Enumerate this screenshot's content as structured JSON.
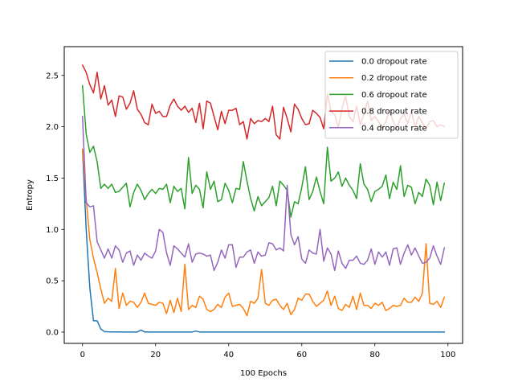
{
  "chart_data": {
    "type": "line",
    "title": "",
    "xlabel": "100 Epochs",
    "ylabel": "Entropy",
    "xlim": [
      -5,
      104
    ],
    "ylim": [
      -0.11,
      2.78
    ],
    "xticks": [
      0,
      20,
      40,
      60,
      80,
      100
    ],
    "yticks": [
      0.0,
      0.5,
      1.0,
      1.5,
      2.0,
      2.5
    ],
    "xtick_labels": [
      "0",
      "20",
      "40",
      "60",
      "80",
      "100"
    ],
    "ytick_labels": [
      "0.0",
      "0.5",
      "1.0",
      "1.5",
      "2.0",
      "2.5"
    ],
    "grid": false,
    "legend_position": "top-right",
    "series": [
      {
        "name": "0.0 dropout rate",
        "color": "#1f77b4",
        "values": [
          1.78,
          1.0,
          0.43,
          0.11,
          0.11,
          0.03,
          0.005,
          0.003,
          0.002,
          0.002,
          0.002,
          0.001,
          0.001,
          0.001,
          0.001,
          0.001,
          0.02,
          0.001,
          0.001,
          0.001,
          0.001,
          0.001,
          0.001,
          0.001,
          0.001,
          0.001,
          0.001,
          0.001,
          0.001,
          0.001,
          0.001,
          0.01,
          0.001,
          0.001,
          0.001,
          0.001,
          0.001,
          0.001,
          0.001,
          0.001,
          0.001,
          0.001,
          0.001,
          0.001,
          0.001,
          0.001,
          0.001,
          0.001,
          0.001,
          0.001,
          0.001,
          0.001,
          0.001,
          0.001,
          0.001,
          0.001,
          0.001,
          0.001,
          0.001,
          0.001,
          0.001,
          0.001,
          0.001,
          0.001,
          0.001,
          0.001,
          0.001,
          0.001,
          0.001,
          0.001,
          0.001,
          0.001,
          0.001,
          0.001,
          0.001,
          0.001,
          0.001,
          0.001,
          0.001,
          0.001,
          0.001,
          0.001,
          0.001,
          0.001,
          0.001,
          0.001,
          0.001,
          0.001,
          0.001,
          0.001,
          0.001,
          0.001,
          0.001,
          0.001,
          0.001,
          0.001,
          0.001,
          0.001,
          0.001,
          0.001
        ]
      },
      {
        "name": "0.2 dropout rate",
        "color": "#ff7f0e",
        "values": [
          1.78,
          1.3,
          0.9,
          0.72,
          0.58,
          0.42,
          0.28,
          0.33,
          0.3,
          0.62,
          0.23,
          0.38,
          0.26,
          0.3,
          0.29,
          0.24,
          0.29,
          0.38,
          0.28,
          0.27,
          0.26,
          0.29,
          0.28,
          0.18,
          0.31,
          0.19,
          0.33,
          0.2,
          0.66,
          0.22,
          0.26,
          0.24,
          0.35,
          0.32,
          0.22,
          0.2,
          0.22,
          0.27,
          0.24,
          0.34,
          0.38,
          0.25,
          0.26,
          0.27,
          0.23,
          0.16,
          0.3,
          0.28,
          0.33,
          0.61,
          0.28,
          0.26,
          0.31,
          0.32,
          0.26,
          0.22,
          0.28,
          0.17,
          0.22,
          0.33,
          0.31,
          0.37,
          0.37,
          0.3,
          0.25,
          0.28,
          0.31,
          0.4,
          0.26,
          0.35,
          0.23,
          0.21,
          0.27,
          0.24,
          0.35,
          0.22,
          0.38,
          0.26,
          0.26,
          0.23,
          0.28,
          0.26,
          0.29,
          0.21,
          0.23,
          0.26,
          0.25,
          0.26,
          0.33,
          0.29,
          0.29,
          0.34,
          0.3,
          0.38,
          0.86,
          0.28,
          0.27,
          0.3,
          0.24,
          0.34
        ]
      },
      {
        "name": "0.6 dropout rate",
        "color": "#2ca02c",
        "values": [
          2.4,
          1.93,
          1.75,
          1.81,
          1.66,
          1.4,
          1.44,
          1.4,
          1.44,
          1.36,
          1.37,
          1.41,
          1.45,
          1.22,
          1.36,
          1.44,
          1.38,
          1.29,
          1.35,
          1.39,
          1.35,
          1.4,
          1.39,
          1.44,
          1.26,
          1.42,
          1.37,
          1.4,
          1.2,
          1.7,
          1.35,
          1.43,
          1.39,
          1.21,
          1.56,
          1.39,
          1.47,
          1.27,
          1.29,
          1.45,
          1.38,
          1.26,
          1.4,
          1.39,
          1.66,
          1.47,
          1.3,
          1.18,
          1.32,
          1.23,
          1.27,
          1.31,
          1.42,
          1.23,
          1.47,
          1.43,
          1.38,
          1.12,
          1.27,
          1.25,
          1.41,
          1.61,
          1.29,
          1.37,
          1.51,
          1.37,
          1.25,
          1.8,
          1.47,
          1.5,
          1.56,
          1.42,
          1.5,
          1.43,
          1.38,
          1.3,
          1.64,
          1.44,
          1.39,
          1.27,
          1.37,
          1.39,
          1.42,
          1.53,
          1.3,
          1.46,
          1.39,
          1.62,
          1.32,
          1.43,
          1.41,
          1.25,
          1.36,
          1.32,
          1.49,
          1.43,
          1.24,
          1.46,
          1.28,
          1.45
        ]
      },
      {
        "name": "0.8 dropout rate",
        "color": "#d62728",
        "values": [
          2.6,
          2.53,
          2.41,
          2.33,
          2.53,
          2.27,
          2.4,
          2.21,
          2.26,
          2.1,
          2.3,
          2.29,
          2.17,
          2.23,
          2.35,
          2.17,
          2.12,
          2.04,
          2.02,
          2.22,
          2.13,
          2.15,
          2.1,
          2.1,
          2.21,
          2.27,
          2.2,
          2.16,
          2.2,
          2.14,
          2.18,
          2.04,
          2.23,
          1.98,
          2.25,
          2.23,
          2.1,
          1.97,
          2.15,
          2.03,
          2.16,
          2.16,
          2.18,
          2.02,
          2.05,
          1.88,
          2.08,
          2.03,
          2.06,
          2.05,
          2.08,
          2.05,
          2.2,
          1.92,
          1.88,
          2.19,
          2.08,
          1.95,
          2.22,
          2.17,
          2.08,
          2.02,
          2.03,
          2.16,
          2.13,
          2.09,
          1.98,
          2.32,
          2.15,
          2.12,
          1.99,
          2.18,
          2.3,
          2.1,
          2.05,
          2.2,
          2.02,
          2.12,
          2.25,
          2.06,
          2.1,
          2.05,
          1.98,
          2.05,
          2.16,
          2.05,
          1.98,
          2.08,
          2.12,
          2.03,
          2.15,
          2.0,
          2.1,
          2.04,
          1.98,
          2.05,
          2.06,
          2.0,
          2.02,
          2.0
        ]
      },
      {
        "name": "0.4 dropout rate",
        "color": "#9467bd",
        "values": [
          2.1,
          1.26,
          1.22,
          1.23,
          0.88,
          0.8,
          0.72,
          0.81,
          0.72,
          0.84,
          0.8,
          0.68,
          0.77,
          0.79,
          0.65,
          0.75,
          0.7,
          0.77,
          0.74,
          0.72,
          0.79,
          1.0,
          0.97,
          0.77,
          0.65,
          0.84,
          0.81,
          0.77,
          0.73,
          0.86,
          0.68,
          0.76,
          0.77,
          0.76,
          0.74,
          0.75,
          0.6,
          0.68,
          0.8,
          0.72,
          0.85,
          0.85,
          0.63,
          0.73,
          0.73,
          0.78,
          0.8,
          0.67,
          0.78,
          0.74,
          0.75,
          0.87,
          0.86,
          0.8,
          0.82,
          0.79,
          1.43,
          0.95,
          0.85,
          0.93,
          0.71,
          0.67,
          0.8,
          0.77,
          0.76,
          1.0,
          0.69,
          0.82,
          0.76,
          0.6,
          0.79,
          0.67,
          0.62,
          0.7,
          0.7,
          0.74,
          0.67,
          0.66,
          0.7,
          0.81,
          0.66,
          0.78,
          0.73,
          0.78,
          0.65,
          0.81,
          0.82,
          0.66,
          0.77,
          0.85,
          0.75,
          0.82,
          0.74,
          0.67,
          0.68,
          0.72,
          0.84,
          0.74,
          0.66,
          0.82
        ]
      }
    ]
  }
}
